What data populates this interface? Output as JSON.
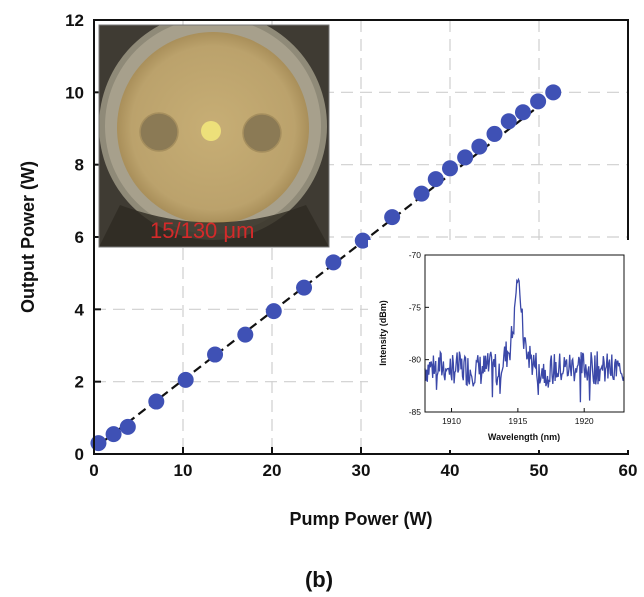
{
  "chart_data": [
    {
      "type": "scatter",
      "title": "",
      "xlabel": "Pump Power (W)",
      "ylabel": "Output Power (W)",
      "xlim": [
        0,
        60
      ],
      "ylim": [
        0,
        12
      ],
      "xticks": [
        "0",
        "10",
        "20",
        "30",
        "40",
        "50",
        "60"
      ],
      "yticks": [
        "0",
        "2",
        "4",
        "6",
        "8",
        "10",
        "12"
      ],
      "grid": true,
      "x": [
        0.5,
        2.2,
        3.8,
        7.0,
        10.3,
        13.6,
        17.0,
        20.2,
        23.6,
        26.9,
        30.2,
        33.5,
        36.8,
        38.4,
        40.0,
        41.7,
        43.3,
        45.0,
        46.6,
        48.2,
        49.9,
        51.6
      ],
      "values": [
        0.3,
        0.55,
        0.75,
        1.45,
        2.05,
        2.75,
        3.3,
        3.95,
        4.6,
        5.3,
        5.9,
        6.55,
        7.2,
        7.6,
        7.9,
        8.2,
        8.5,
        8.85,
        9.2,
        9.45,
        9.75,
        10.0
      ],
      "fit_line": {
        "x": [
          0,
          52
        ],
        "y": [
          0.15,
          10.0
        ]
      },
      "marker_color": "#3f51b5",
      "fit_color": "#111111",
      "caption": "(b)"
    },
    {
      "type": "line",
      "title": "",
      "xlabel": "Wavelength (nm)",
      "ylabel": "Intensity (dBm)",
      "xlim": [
        1908,
        1923
      ],
      "ylim": [
        -85,
        -70
      ],
      "xticks": [
        "1910",
        "1915",
        "1920"
      ],
      "yticks": [
        "-70",
        "-75",
        "-80",
        "-85"
      ],
      "line_color": "#3b48a8",
      "spectrum_peak": {
        "x": 1915.0,
        "y": -72.3
      }
    }
  ],
  "inset_photo": {
    "label": "15/130 μm",
    "core_color": "#ede07a",
    "cladding_color": "#bfa771",
    "border_color": "#9c9580",
    "background_color": "#3f3b33"
  }
}
